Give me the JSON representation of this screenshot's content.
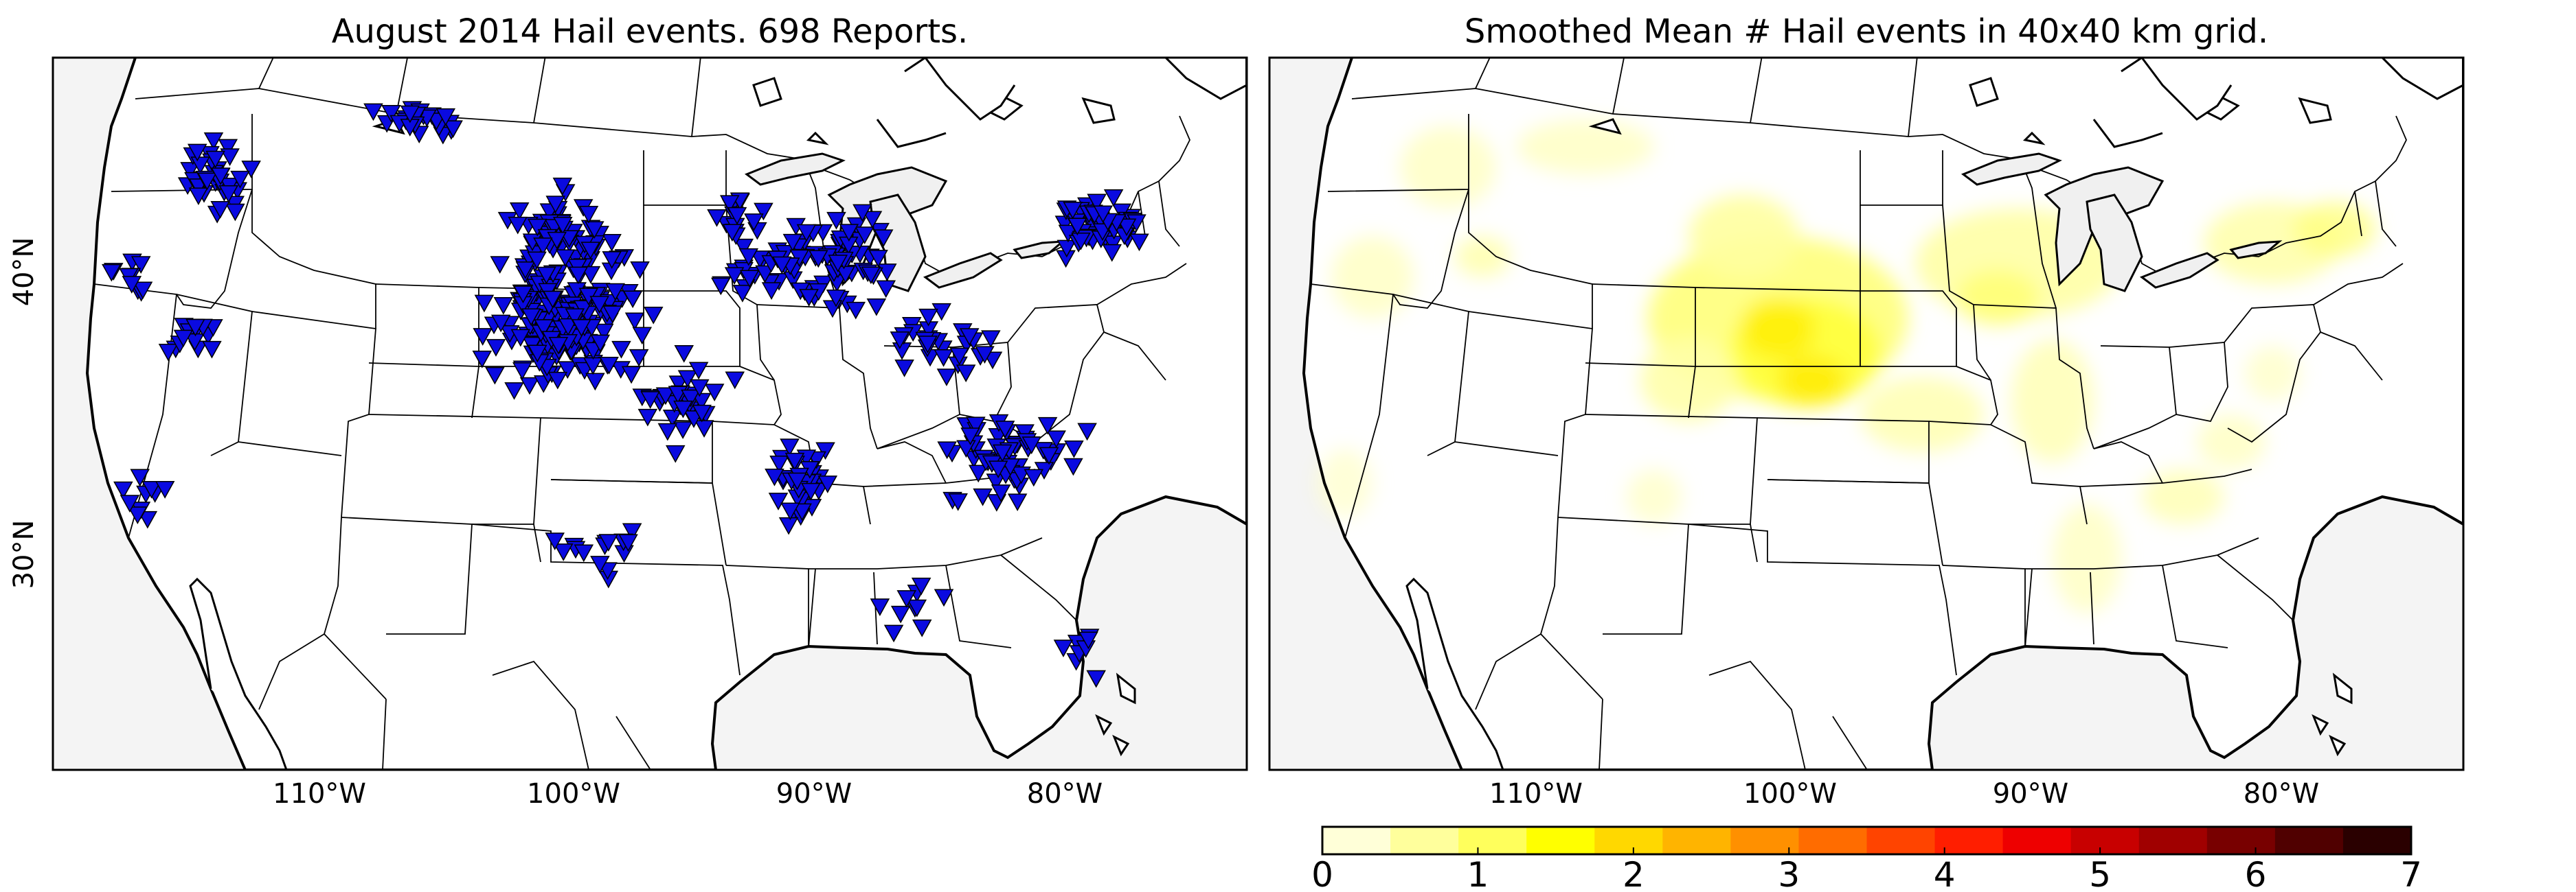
{
  "figure": {
    "left_panel": {
      "title": "August 2014 Hail events. 698 Reports.",
      "marker_color": "#0a0ae0",
      "ocean_color": "#f4f4f4"
    },
    "right_panel": {
      "title": "Smoothed Mean # Hail events in 40x40 km grid."
    },
    "lat_labels": [
      "40°N",
      "30°N"
    ],
    "lon_labels": [
      "110°W",
      "100°W",
      "90°W",
      "80°W"
    ],
    "colorbar": {
      "ticks": [
        "0",
        "1",
        "2",
        "3",
        "4",
        "5",
        "6",
        "7"
      ],
      "colors": [
        "#ffffd8",
        "#ffff9c",
        "#ffff5c",
        "#ffff00",
        "#ffd800",
        "#ffb400",
        "#ff9000",
        "#ff6c00",
        "#ff4400",
        "#ff1e00",
        "#ee0000",
        "#c80000",
        "#a00000",
        "#780000",
        "#500000",
        "#2a0000"
      ]
    }
  },
  "chart_data": {
    "type": "map",
    "title": "August 2014 Hail events. 698 Reports.",
    "lat_ticks": [
      40,
      30
    ],
    "lon_ticks": [
      -110,
      -100,
      -90,
      -80
    ],
    "colorbar_range": [
      0,
      7
    ],
    "hotspot": {
      "region": "Nebraska / Kansas",
      "approx_lat": 40.3,
      "approx_lon": -99.3
    }
  }
}
